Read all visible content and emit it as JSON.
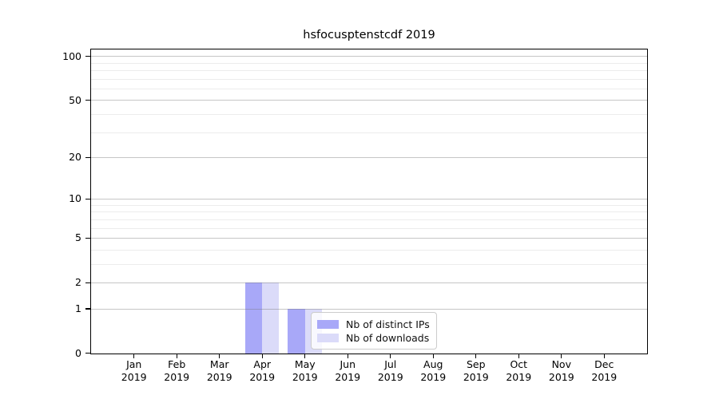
{
  "title": "hsfocusptenstcdf 2019",
  "chart_data": {
    "type": "bar",
    "title": "hsfocusptenstcdf 2019",
    "categories": [
      "Jan",
      "Feb",
      "Mar",
      "Apr",
      "May",
      "Jun",
      "Jul",
      "Aug",
      "Sep",
      "Oct",
      "Nov",
      "Dec"
    ],
    "year_label": "2019",
    "series": [
      {
        "name": "Nb of distinct IPs",
        "color": "#a8a8f8",
        "values": [
          0,
          0,
          0,
          2,
          1,
          0,
          0,
          0,
          0,
          0,
          0,
          0
        ]
      },
      {
        "name": "Nb of downloads",
        "color": "#dbdbf9",
        "values": [
          0,
          0,
          0,
          2,
          1,
          0,
          0,
          0,
          0,
          0,
          0,
          0
        ]
      }
    ],
    "yscale": "log1p",
    "ylim": [
      0,
      111
    ],
    "y_major_ticks": [
      0,
      1,
      2,
      5,
      10,
      20,
      50,
      100
    ],
    "y_minor_ticks": [
      3,
      4,
      6,
      7,
      8,
      9,
      30,
      40,
      60,
      70,
      80,
      90
    ],
    "grid": "horizontal",
    "legend_position": "inside-bottom-center",
    "colors": {
      "spine": "#000000",
      "grid_major": "#c6c6c6",
      "grid_minor": "#e9e9e9",
      "text": "#000000",
      "background": "#ffffff"
    }
  }
}
